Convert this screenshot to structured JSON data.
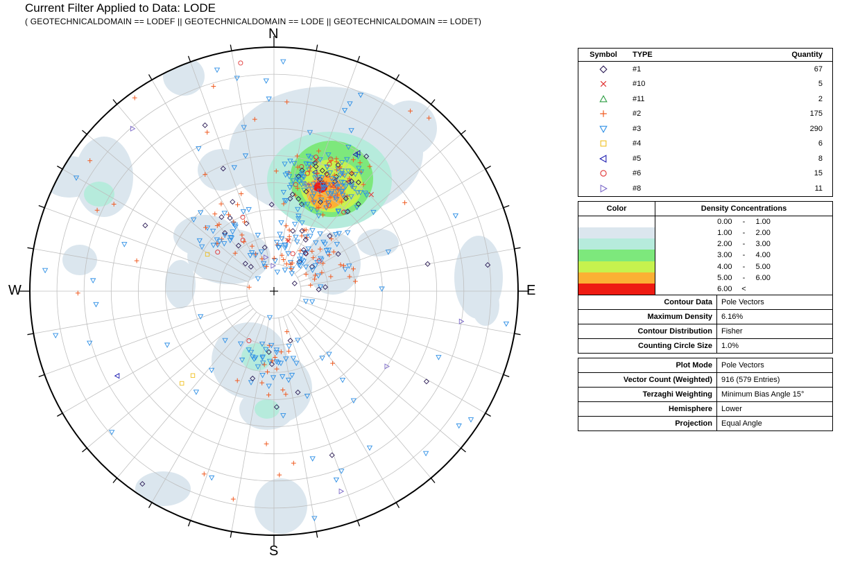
{
  "filter": {
    "title": "Current Filter Applied to Data: LODE",
    "expression": "( GEOTECHNICALDOMAIN == LODEF || GEOTECHNICALDOMAIN == LODE || GEOTECHNICALDOMAIN == LODET)"
  },
  "compass": {
    "north": "N",
    "south": "S",
    "east": "E",
    "west": "W"
  },
  "legend": {
    "headers": {
      "symbol": "Symbol",
      "type": "TYPE",
      "quantity": "Quantity"
    },
    "rows": [
      {
        "symbol": "diamond",
        "color": "#2b1b55",
        "type": "#1",
        "quantity": "67"
      },
      {
        "symbol": "cross-x",
        "color": "#e03030",
        "type": "#10",
        "quantity": "5"
      },
      {
        "symbol": "triangle-up",
        "color": "#2e9e44",
        "type": "#11",
        "quantity": "2"
      },
      {
        "symbol": "plus",
        "color": "#f05a20",
        "type": "#2",
        "quantity": "175"
      },
      {
        "symbol": "triangle-down",
        "color": "#2d8fe6",
        "type": "#3",
        "quantity": "290"
      },
      {
        "symbol": "square",
        "color": "#f0c020",
        "type": "#4",
        "quantity": "6"
      },
      {
        "symbol": "triangle-left",
        "color": "#1a1ab0",
        "type": "#5",
        "quantity": "8"
      },
      {
        "symbol": "circle",
        "color": "#e03030",
        "type": "#6",
        "quantity": "15"
      },
      {
        "symbol": "triangle-right",
        "color": "#7b68c8",
        "type": "#8",
        "quantity": "11"
      }
    ]
  },
  "density": {
    "headers": {
      "color": "Color",
      "concentrations": "Density Concentrations"
    },
    "rows": [
      {
        "color": "#ffffff",
        "low": "0.00",
        "sep": "-",
        "high": "1.00"
      },
      {
        "color": "#dbe6ee",
        "low": "1.00",
        "sep": "-",
        "high": "2.00"
      },
      {
        "color": "#b6ebdc",
        "low": "2.00",
        "sep": "-",
        "high": "3.00"
      },
      {
        "color": "#7de87c",
        "low": "3.00",
        "sep": "-",
        "high": "4.00"
      },
      {
        "color": "#c6f24e",
        "low": "4.00",
        "sep": "-",
        "high": "5.00"
      },
      {
        "color": "#fbb034",
        "low": "5.00",
        "sep": "-",
        "high": "6.00"
      },
      {
        "color": "#ee1b12",
        "low": "6.00",
        "sep": "<",
        "high": ""
      }
    ]
  },
  "contour": [
    {
      "label": "Contour Data",
      "value": "Pole Vectors"
    },
    {
      "label": "Maximum Density",
      "value": "6.16%"
    },
    {
      "label": "Contour Distribution",
      "value": "Fisher"
    },
    {
      "label": "Counting Circle Size",
      "value": "1.0%"
    }
  ],
  "plot": [
    {
      "label": "Plot Mode",
      "value": "Pole Vectors"
    },
    {
      "label": "Vector Count (Weighted)",
      "value": "916 (579 Entries)"
    },
    {
      "label": "Terzaghi Weighting",
      "value": "Minimum Bias Angle 15°"
    },
    {
      "label": "Hemisphere",
      "value": "Lower"
    },
    {
      "label": "Projection",
      "value": "Equal Angle"
    }
  ]
}
